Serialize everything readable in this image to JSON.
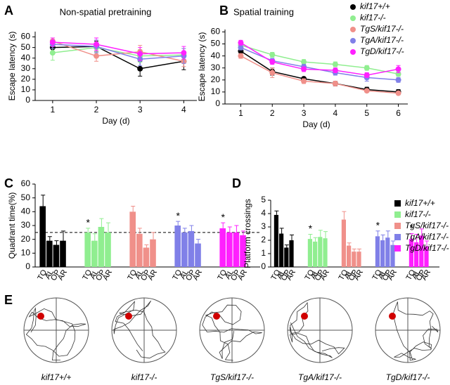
{
  "chart_data": [
    {
      "type": "line",
      "panel": "A",
      "title": "Non-spatial pretraining",
      "x_label": "Day (d)",
      "y_label": "Escape latency (s)",
      "x": [
        1,
        2,
        3,
        4
      ],
      "xlim": [
        0.6,
        4.3
      ],
      "xticks": [
        1,
        2,
        3,
        4
      ],
      "ylim": [
        0,
        65
      ],
      "yticks": [
        0,
        10,
        20,
        30,
        40,
        50,
        60
      ],
      "series": [
        {
          "color": "#000000",
          "values": [
            50,
            51,
            30,
            37
          ],
          "errors": [
            5,
            5,
            7,
            8
          ]
        },
        {
          "color": "#90ee90",
          "values": [
            45,
            50,
            42,
            43
          ],
          "errors": [
            7,
            4,
            6,
            6
          ]
        },
        {
          "color": "#f0908a",
          "values": [
            56,
            42,
            46,
            37
          ],
          "errors": [
            3,
            5,
            6,
            5
          ]
        },
        {
          "color": "#8080e8",
          "values": [
            53,
            51,
            39,
            42
          ],
          "errors": [
            4,
            6,
            6,
            7
          ]
        },
        {
          "color": "#ff20ff",
          "values": [
            55,
            53,
            44,
            45
          ],
          "errors": [
            4,
            6,
            6,
            6
          ]
        }
      ]
    },
    {
      "type": "line",
      "panel": "B",
      "title": "Spatial training",
      "x_label": "Day (d)",
      "y_label": "Escape latency (s)",
      "x": [
        1,
        2,
        3,
        4,
        5,
        6
      ],
      "xlim": [
        0.5,
        6.3
      ],
      "xticks": [
        1,
        2,
        3,
        4,
        5,
        6
      ],
      "ylim": [
        0,
        62
      ],
      "yticks": [
        0,
        10,
        20,
        30,
        40,
        50,
        60
      ],
      "legend": "right",
      "series": [
        {
          "name": "kif17+/+",
          "color": "#000000",
          "values": [
            44,
            27,
            21,
            17,
            12,
            10
          ],
          "errors": [
            2,
            3,
            1,
            2,
            2,
            2
          ]
        },
        {
          "name": "kif17-/-",
          "color": "#90ee90",
          "values": [
            49,
            41,
            35,
            33,
            30,
            25
          ],
          "errors": [
            2,
            2,
            2,
            2,
            2,
            2
          ]
        },
        {
          "name": "TgS/kif17-/-",
          "color": "#f0908a",
          "values": [
            40,
            26,
            19,
            17,
            11,
            9
          ],
          "errors": [
            2,
            4,
            2,
            2,
            1,
            1
          ]
        },
        {
          "name": "TgA/kif17-/-",
          "color": "#8080e8",
          "values": [
            47,
            36,
            31,
            26,
            22,
            20
          ],
          "errors": [
            2,
            2,
            2,
            2,
            3,
            2
          ]
        },
        {
          "name": "TgD/kif17-/-",
          "color": "#ff20ff",
          "values": [
            51,
            35,
            29,
            28,
            24,
            29
          ],
          "errors": [
            2,
            2,
            2,
            2,
            2,
            3
          ]
        }
      ]
    },
    {
      "type": "bar",
      "panel": "C",
      "y_label": "Quadrant time(%)",
      "categories": [
        "TQ",
        "AL",
        "OP",
        "AR"
      ],
      "ylim": [
        0,
        60
      ],
      "yticks": [
        0,
        10,
        20,
        30,
        40,
        50,
        60
      ],
      "reference_line": 25,
      "series": [
        {
          "color": "#000000",
          "values": [
            44,
            19,
            16,
            19
          ],
          "errors": [
            8,
            3,
            3,
            7
          ]
        },
        {
          "color": "#90ee90",
          "values": [
            25,
            19,
            29,
            25
          ],
          "errors": [
            3,
            5,
            6,
            7
          ],
          "annotation": "*"
        },
        {
          "color": "#f0908a",
          "values": [
            40,
            24,
            14,
            20
          ],
          "errors": [
            4,
            4,
            2,
            5
          ]
        },
        {
          "color": "#8080e8",
          "values": [
            30,
            25,
            26,
            17
          ],
          "errors": [
            3,
            3,
            4,
            3
          ],
          "annotation": "*"
        },
        {
          "color": "#ff20ff",
          "values": [
            28,
            25,
            25,
            23
          ],
          "errors": [
            4,
            4,
            5,
            3
          ],
          "annotation": "*"
        }
      ]
    },
    {
      "type": "bar",
      "panel": "D",
      "y_label": "Platform crossings",
      "categories": [
        "TQ",
        "AL",
        "OP",
        "AR"
      ],
      "ylim": [
        0,
        5
      ],
      "yticks": [
        0,
        1,
        2,
        3,
        4,
        5
      ],
      "legend": "right",
      "series": [
        {
          "name": "kif17+/+",
          "color": "#000000",
          "values": [
            3.9,
            2.5,
            1.45,
            2.0
          ],
          "errors": [
            0.3,
            0.4,
            0.2,
            0.4
          ]
        },
        {
          "name": "kif17-/-",
          "color": "#90ee90",
          "values": [
            2.1,
            1.9,
            2.25,
            2.15
          ],
          "errors": [
            0.35,
            0.3,
            0.5,
            0.5
          ],
          "annotation": "*"
        },
        {
          "name": "TgS/kif17-/-",
          "color": "#f0908a",
          "values": [
            3.55,
            1.6,
            1.15,
            1.15
          ],
          "errors": [
            0.6,
            0.2,
            0.2,
            0.2
          ]
        },
        {
          "name": "TgA/kif17-/-",
          "color": "#8080e8",
          "values": [
            2.3,
            2.0,
            2.2,
            1.65
          ],
          "errors": [
            0.4,
            0.4,
            0.5,
            0.3
          ],
          "annotation": "*"
        },
        {
          "name": "TgD/kif17-/-",
          "color": "#ff20ff",
          "values": [
            2.1,
            1.85,
            2.35,
            1.55
          ],
          "errors": [
            0.4,
            0.6,
            0.5,
            0.4
          ],
          "annotation": "*"
        }
      ]
    }
  ],
  "swim_paths": {
    "panel": "E",
    "captions": [
      "kif17+/+",
      "kif17-/-",
      "TgS/kif17-/-",
      "TgA/kif17-/-",
      "TgD/kif17-/-"
    ]
  }
}
